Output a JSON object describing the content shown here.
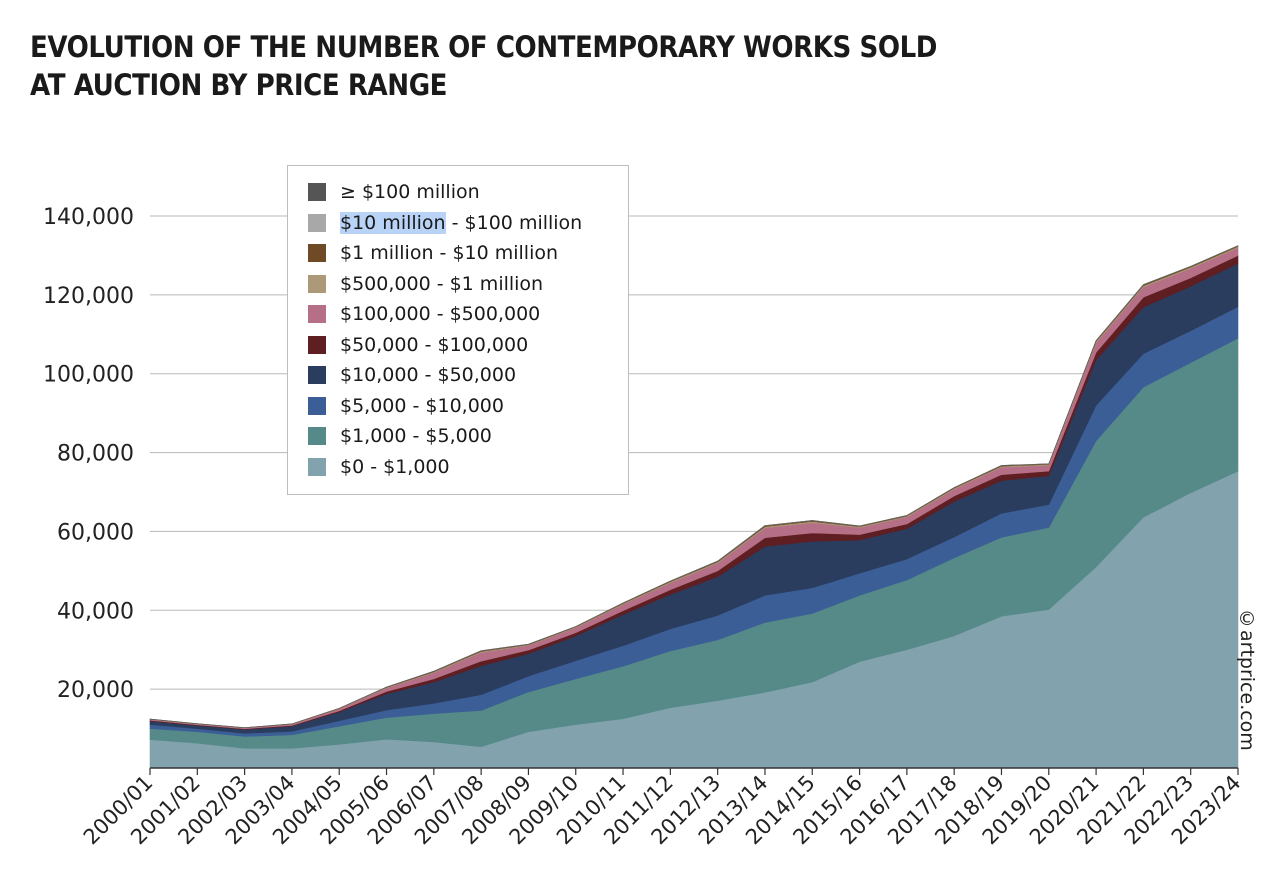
{
  "title_lines": [
    "EVOLUTION OF THE NUMBER OF CONTEMPORARY WORKS SOLD",
    "AT AUCTION BY PRICE RANGE"
  ],
  "credit": "©artprice.com",
  "chart_data": {
    "type": "area",
    "stacked": true,
    "title": "EVOLUTION OF THE NUMBER OF CONTEMPORARY WORKS SOLD AT AUCTION BY PRICE RANGE",
    "xlabel": "",
    "ylabel": "",
    "ylim": [
      0,
      140000
    ],
    "yticks": [
      0,
      20000,
      40000,
      60000,
      80000,
      100000,
      120000,
      140000
    ],
    "ytick_labels": [
      "",
      "20,000",
      "40,000",
      "60,000",
      "80,000",
      "100,000",
      "120,000",
      "140,000"
    ],
    "grid": true,
    "legend_position": "top-left",
    "categories": [
      "2000/01",
      "2001/02",
      "2002/03",
      "2003/04",
      "2004/05",
      "2005/06",
      "2006/07",
      "2007/08",
      "2008/09",
      "2009/10",
      "2010/11",
      "2011/12",
      "2012/13",
      "2013/14",
      "2014/15",
      "2015/16",
      "2016/17",
      "2017/18",
      "2018/19",
      "2019/20",
      "2020/21",
      "2021/22",
      "2022/23",
      "2023/24"
    ],
    "series": [
      {
        "name": "$0 - $1,000",
        "color": "#82a2ad",
        "values": [
          7200,
          6300,
          5000,
          5000,
          6000,
          7300,
          6600,
          5400,
          9200,
          11000,
          12500,
          15300,
          17100,
          19200,
          21800,
          27000,
          30000,
          33500,
          38500,
          40200,
          51000,
          63600,
          69800,
          75300
        ]
      },
      {
        "name": "$1,000 - $5,000",
        "color": "#558a88",
        "values": [
          2800,
          2900,
          3000,
          3400,
          4600,
          5500,
          7200,
          9200,
          10100,
          11600,
          13300,
          14400,
          15400,
          17700,
          17400,
          16800,
          17700,
          19800,
          20000,
          20800,
          32000,
          33000,
          33000,
          33700
        ]
      },
      {
        "name": "$5,000 - $10,000",
        "color": "#3b5e97",
        "values": [
          1000,
          800,
          800,
          900,
          1400,
          1900,
          2600,
          4000,
          4000,
          4600,
          5200,
          5600,
          6200,
          6900,
          6500,
          5600,
          5300,
          5300,
          6100,
          5800,
          9000,
          8500,
          8100,
          8000
        ]
      },
      {
        "name": "$10,000 - $50,000",
        "color": "#2b3d5e",
        "values": [
          900,
          800,
          1000,
          1300,
          2200,
          4100,
          5400,
          7300,
          5700,
          6300,
          7900,
          8700,
          9800,
          12400,
          11800,
          8400,
          7700,
          9000,
          8300,
          7300,
          11500,
          11800,
          11300,
          11000
        ]
      },
      {
        "name": "$50,000 - $100,000",
        "color": "#5e1e22",
        "values": [
          200,
          150,
          150,
          200,
          300,
          600,
          800,
          1200,
          900,
          800,
          1000,
          1200,
          1500,
          2200,
          2100,
          1400,
          1200,
          1400,
          1500,
          1200,
          1900,
          2500,
          2100,
          2000
        ]
      },
      {
        "name": "$100,000 - $500,000",
        "color": "#b56f87",
        "values": [
          200,
          200,
          200,
          300,
          500,
          900,
          1600,
          2200,
          1200,
          1300,
          1600,
          1800,
          2000,
          2500,
          2600,
          1800,
          1800,
          1700,
          1900,
          1500,
          2500,
          2600,
          2400,
          2000
        ]
      },
      {
        "name": "$500,000 - $1 million",
        "color": "#ab9977",
        "values": [
          60,
          50,
          40,
          50,
          80,
          120,
          200,
          260,
          160,
          160,
          200,
          240,
          260,
          320,
          320,
          220,
          200,
          240,
          250,
          200,
          280,
          320,
          300,
          260
        ]
      },
      {
        "name": "$1 million - $10 million",
        "color": "#6e4a27",
        "values": [
          40,
          40,
          30,
          40,
          60,
          90,
          140,
          180,
          120,
          110,
          150,
          170,
          190,
          240,
          240,
          160,
          140,
          160,
          170,
          140,
          200,
          240,
          220,
          190
        ]
      },
      {
        "name": "$10 million - $100 million",
        "color": "#a8a8a8",
        "values": [
          5,
          5,
          5,
          5,
          8,
          12,
          20,
          25,
          15,
          15,
          20,
          25,
          30,
          40,
          40,
          25,
          25,
          30,
          30,
          25,
          40,
          45,
          40,
          35
        ]
      },
      {
        "name": "≥ $100 million",
        "color": "#555555",
        "values": [
          0,
          0,
          0,
          0,
          0,
          0,
          0,
          1,
          0,
          0,
          0,
          0,
          0,
          0,
          0,
          0,
          0,
          0,
          0,
          0,
          0,
          1,
          0,
          0
        ]
      }
    ]
  },
  "legend": [
    {
      "label": "≥ $100 million",
      "color": "#555555"
    },
    {
      "label": "$10 million",
      "label_rest": " - $100 million",
      "color": "#a8a8a8"
    },
    {
      "label": "$1 million - $10 million",
      "color": "#6e4a27"
    },
    {
      "label": "$500,000 - $1 million",
      "color": "#ab9977"
    },
    {
      "label": "$100,000 - $500,000",
      "color": "#b56f87"
    },
    {
      "label": "$50,000 - $100,000",
      "color": "#5e1e22"
    },
    {
      "label": "$10,000 - $50,000",
      "color": "#2b3d5e"
    },
    {
      "label": "$5,000 - $10,000",
      "color": "#3b5e97"
    },
    {
      "label": "$1,000 - $5,000",
      "color": "#558a88"
    },
    {
      "label": "$0 - $1,000",
      "color": "#82a2ad"
    }
  ]
}
